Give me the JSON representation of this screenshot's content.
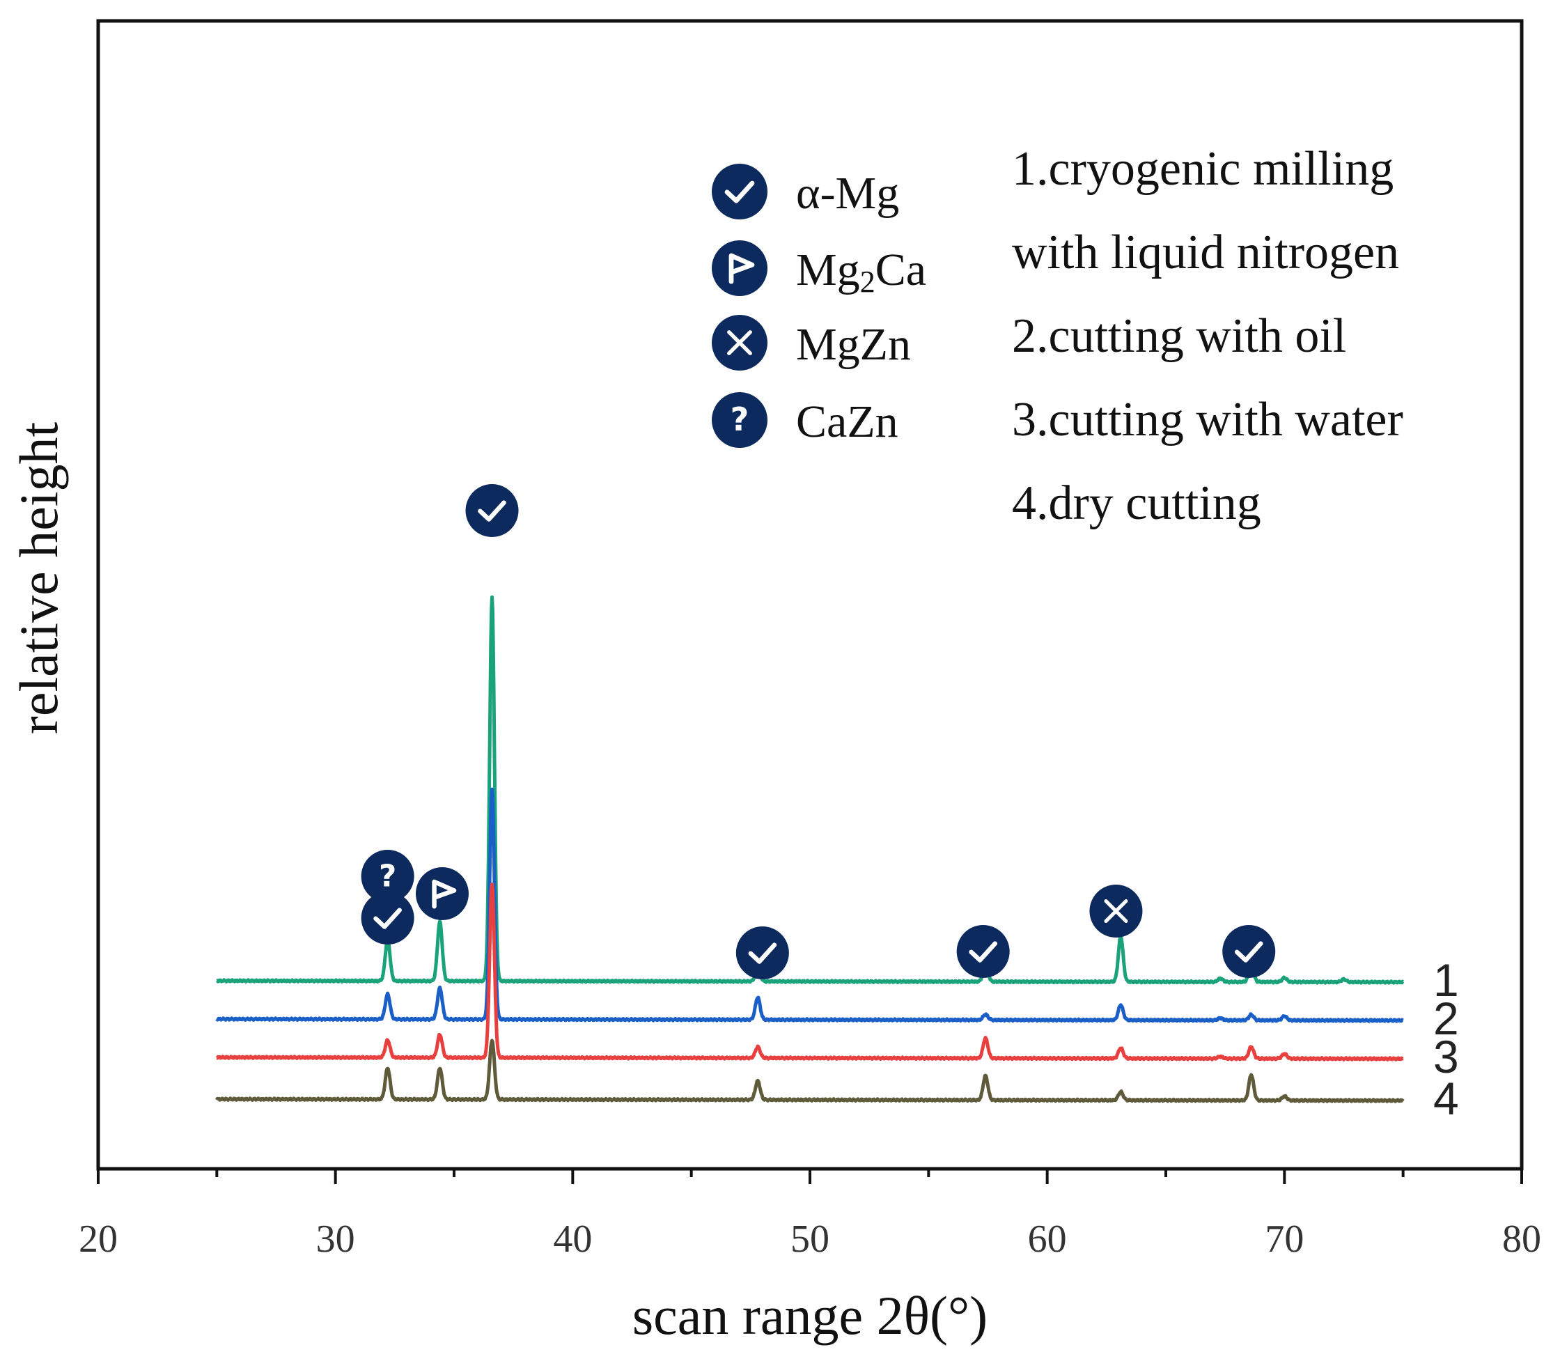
{
  "chart_data": {
    "type": "line",
    "title": "",
    "xlabel": "scan range 2θ(°)",
    "ylabel": "relative height",
    "xlim": [
      20,
      80
    ],
    "xticks": [
      "20",
      "30",
      "40",
      "50",
      "60",
      "70",
      "80"
    ],
    "x_range": [
      25,
      75
    ],
    "stack_offsets": [
      1.7,
      1.15,
      0.6,
      0.0
    ],
    "series": [
      {
        "name": "1",
        "color": "#1aa37a",
        "peaks": [
          {
            "x": 32.2,
            "h": 0.6
          },
          {
            "x": 34.4,
            "h": 0.85
          },
          {
            "x": 36.6,
            "h": 5.5
          },
          {
            "x": 47.8,
            "h": 0.18
          },
          {
            "x": 57.4,
            "h": 0.26
          },
          {
            "x": 63.1,
            "h": 0.65
          },
          {
            "x": 67.3,
            "h": 0.05
          },
          {
            "x": 68.6,
            "h": 0.25
          },
          {
            "x": 70.0,
            "h": 0.06
          },
          {
            "x": 72.5,
            "h": 0.04
          }
        ]
      },
      {
        "name": "2",
        "color": "#1a5fc8",
        "peaks": [
          {
            "x": 32.2,
            "h": 0.36
          },
          {
            "x": 34.4,
            "h": 0.45
          },
          {
            "x": 36.6,
            "h": 3.3
          },
          {
            "x": 47.8,
            "h": 0.32
          },
          {
            "x": 57.4,
            "h": 0.08
          },
          {
            "x": 63.1,
            "h": 0.22
          },
          {
            "x": 67.3,
            "h": 0.03
          },
          {
            "x": 68.6,
            "h": 0.08
          },
          {
            "x": 70.0,
            "h": 0.06
          }
        ]
      },
      {
        "name": "3",
        "color": "#e8403e",
        "peaks": [
          {
            "x": 32.2,
            "h": 0.25
          },
          {
            "x": 34.4,
            "h": 0.33
          },
          {
            "x": 36.6,
            "h": 2.5
          },
          {
            "x": 47.8,
            "h": 0.16
          },
          {
            "x": 57.4,
            "h": 0.29
          },
          {
            "x": 63.1,
            "h": 0.15
          },
          {
            "x": 67.3,
            "h": 0.03
          },
          {
            "x": 68.6,
            "h": 0.17
          },
          {
            "x": 70.0,
            "h": 0.07
          }
        ]
      },
      {
        "name": "4",
        "color": "#5f5a3a",
        "peaks": [
          {
            "x": 32.2,
            "h": 0.45
          },
          {
            "x": 34.4,
            "h": 0.45
          },
          {
            "x": 36.6,
            "h": 0.85
          },
          {
            "x": 47.8,
            "h": 0.27
          },
          {
            "x": 57.4,
            "h": 0.35
          },
          {
            "x": 63.1,
            "h": 0.12
          },
          {
            "x": 68.6,
            "h": 0.37
          },
          {
            "x": 70.0,
            "h": 0.06
          }
        ]
      }
    ],
    "phase_markers": [
      {
        "x": 32.2,
        "phase": "α-Mg",
        "y": 2.6
      },
      {
        "x": 32.2,
        "phase": "CaZn",
        "y": 3.2
      },
      {
        "x": 34.5,
        "phase": "Mg2Ca",
        "y": 2.95
      },
      {
        "x": 36.6,
        "phase": "α-Mg",
        "y": 8.45
      },
      {
        "x": 48.0,
        "phase": "α-Mg",
        "y": 2.1
      },
      {
        "x": 57.3,
        "phase": "α-Mg",
        "y": 2.12
      },
      {
        "x": 62.9,
        "phase": "MgZn",
        "y": 2.7
      },
      {
        "x": 68.5,
        "phase": "α-Mg",
        "y": 2.12
      }
    ],
    "legend": [
      {
        "symbol": "check",
        "label": "α-Mg"
      },
      {
        "symbol": "flag",
        "label_main": "Mg",
        "label_sub": "2",
        "label_tail": "Ca"
      },
      {
        "symbol": "cross",
        "label": "MgZn"
      },
      {
        "symbol": "question",
        "label": "CaZn"
      }
    ],
    "annotations": [
      "1.cryogenic milling",
      "with liquid nitrogen",
      "2.cutting with oil",
      "3.cutting with water",
      "4.dry cutting"
    ],
    "trace_labels": [
      "1",
      "2",
      "3",
      "4"
    ]
  },
  "colors": {
    "marker_fill": "#0d2a5e",
    "axis": "#111111"
  }
}
